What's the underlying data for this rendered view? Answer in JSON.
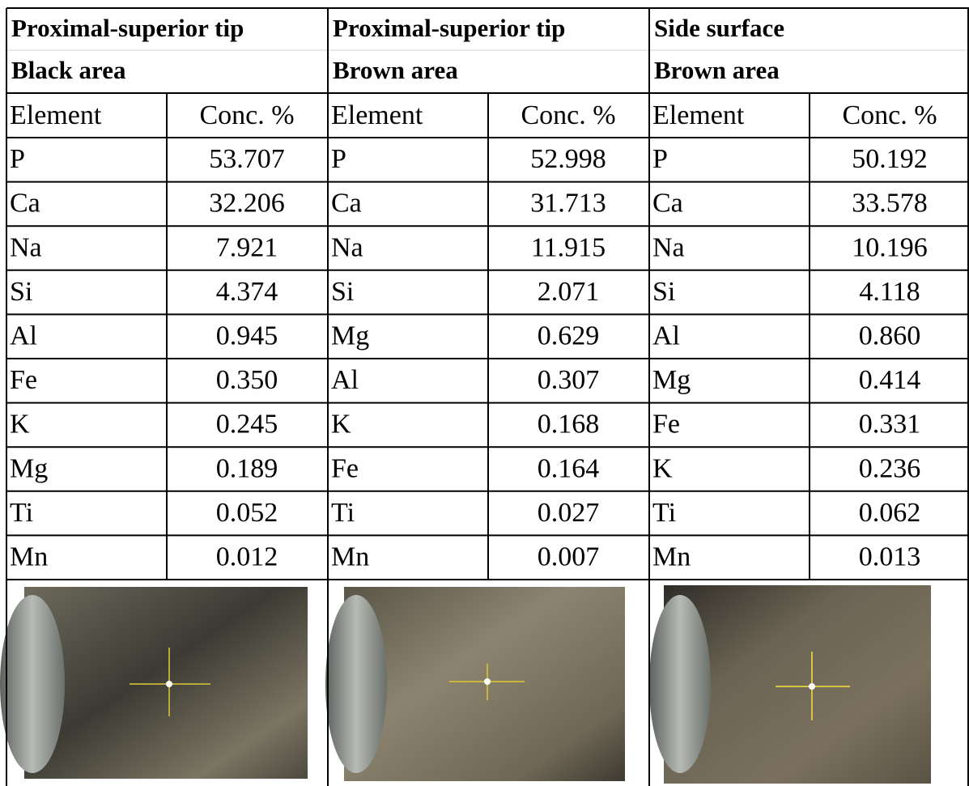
{
  "sections": [
    {
      "title": "Proximal-superior tip",
      "subtitle": "Black area",
      "columns": [
        "Element",
        "Conc. %"
      ],
      "rows": [
        [
          "P",
          "53.707"
        ],
        [
          "Ca",
          "32.206"
        ],
        [
          "Na",
          "7.921"
        ],
        [
          "Si",
          "4.374"
        ],
        [
          "Al",
          "0.945"
        ],
        [
          "Fe",
          "0.350"
        ],
        [
          "K",
          "0.245"
        ],
        [
          "Mg",
          "0.189"
        ],
        [
          "Ti",
          "0.052"
        ],
        [
          "Mn",
          "0.012"
        ]
      ]
    },
    {
      "title": "Proximal-superior tip",
      "subtitle": "Brown area",
      "columns": [
        "Element",
        "Conc. %"
      ],
      "rows": [
        [
          "P",
          "52.998"
        ],
        [
          "Ca",
          "31.713"
        ],
        [
          "Na",
          "11.915"
        ],
        [
          "Si",
          "2.071"
        ],
        [
          "Mg",
          "0.629"
        ],
        [
          "Al",
          "0.307"
        ],
        [
          "K",
          "0.168"
        ],
        [
          "Fe",
          "0.164"
        ],
        [
          "Ti",
          "0.027"
        ],
        [
          "Mn",
          "0.007"
        ]
      ]
    },
    {
      "title": "Side surface",
      "subtitle": "Brown area",
      "columns": [
        "Element",
        "Conc. %"
      ],
      "rows": [
        [
          "P",
          "50.192"
        ],
        [
          "Ca",
          "33.578"
        ],
        [
          "Na",
          "10.196"
        ],
        [
          "Si",
          "4.118"
        ],
        [
          "Al",
          "0.860"
        ],
        [
          "Mg",
          "0.414"
        ],
        [
          "Fe",
          "0.331"
        ],
        [
          "K",
          "0.236"
        ],
        [
          "Ti",
          "0.062"
        ],
        [
          "Mn",
          "0.013"
        ]
      ]
    }
  ]
}
